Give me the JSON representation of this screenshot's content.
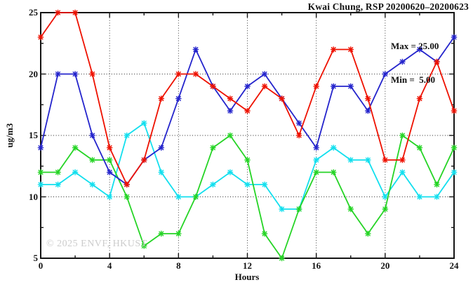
{
  "title": "Kwai Chung, RSP 20200620–20200623",
  "annotations": {
    "max_label": "Max = 25.00",
    "min_label": "Min =  5.00"
  },
  "watermark": "© 2025 ENVF, HKUST",
  "axes": {
    "xlabel": "Hours",
    "ylabel": "ug/m3"
  },
  "chart_data": {
    "type": "line",
    "title": "Kwai Chung, RSP 20200620–20200623",
    "xlabel": "Hours",
    "ylabel": "ug/m3",
    "xlim": [
      0,
      24
    ],
    "ylim": [
      5,
      25
    ],
    "x_major_ticks": [
      0,
      4,
      8,
      12,
      16,
      20,
      24
    ],
    "x_minor_ticks": [
      2,
      6,
      10,
      14,
      18,
      22
    ],
    "y_major_ticks": [
      5,
      10,
      15,
      20,
      25
    ],
    "y_minor_ticks": [
      7.5,
      12.5,
      17.5,
      22.5
    ],
    "grid": "dotted black gridlines at major ticks inside full box frame",
    "legend_position": "none",
    "stats": {
      "max": 25.0,
      "min": 5.0
    },
    "x": [
      0,
      1,
      2,
      3,
      4,
      5,
      6,
      7,
      8,
      9,
      10,
      11,
      12,
      13,
      14,
      15,
      16,
      17,
      18,
      19,
      20,
      21,
      22,
      23,
      24
    ],
    "series": [
      {
        "name": "cyan-line",
        "color": "#12dfee",
        "values": [
          11,
          11,
          12,
          11,
          10,
          15,
          16,
          12,
          10,
          10,
          11,
          12,
          11,
          11,
          9,
          9,
          13,
          14,
          13,
          13,
          10,
          12,
          10,
          10,
          12
        ]
      },
      {
        "name": "green-line",
        "color": "#25d425",
        "values": [
          12,
          12,
          14,
          13,
          13,
          10,
          6,
          7,
          7,
          10,
          14,
          15,
          13,
          7,
          5,
          9,
          12,
          12,
          9,
          7,
          9,
          15,
          14,
          11,
          14
        ]
      },
      {
        "name": "blue-line",
        "color": "#2424cc",
        "values": [
          14,
          20,
          20,
          15,
          12,
          11,
          13,
          14,
          18,
          22,
          19,
          17,
          19,
          20,
          18,
          16,
          14,
          19,
          19,
          17,
          20,
          21,
          22,
          21,
          23
        ]
      },
      {
        "name": "red-line",
        "color": "#ee1100",
        "values": [
          23,
          25,
          25,
          20,
          14,
          11,
          13,
          18,
          20,
          20,
          19,
          18,
          17,
          19,
          18,
          15,
          19,
          22,
          22,
          18,
          13,
          13,
          18,
          21,
          17
        ]
      }
    ]
  }
}
